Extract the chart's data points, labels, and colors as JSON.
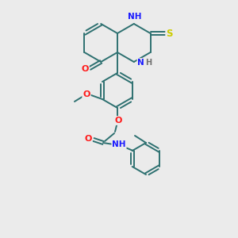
{
  "bg_color": "#ebebeb",
  "bond_color": "#2d7070",
  "atom_colors": {
    "N": "#1a1aff",
    "O": "#ff1a1a",
    "S": "#cccc00",
    "H": "#707070",
    "C": "#2d7070"
  },
  "figsize": [
    3.0,
    3.0
  ],
  "dpi": 100
}
